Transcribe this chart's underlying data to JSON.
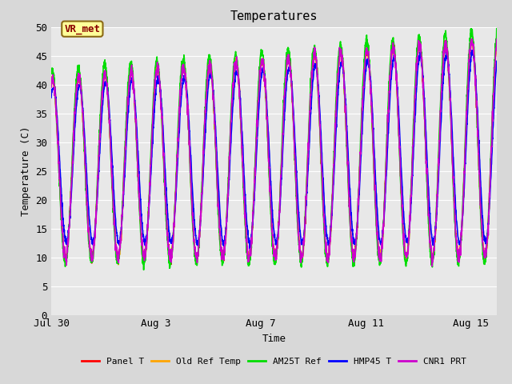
{
  "title": "Temperatures",
  "xlabel": "Time",
  "ylabel": "Temperature (C)",
  "ylim": [
    0,
    50
  ],
  "yticks": [
    0,
    5,
    10,
    15,
    20,
    25,
    30,
    35,
    40,
    45,
    50
  ],
  "x_tick_labels": [
    "Jul 30",
    "Aug 3",
    "Aug 7",
    "Aug 11",
    "Aug 15"
  ],
  "x_tick_positions": [
    0,
    4,
    8,
    12,
    16
  ],
  "annotation_text": "VR_met",
  "bg_color": "#d8d8d8",
  "plot_bg_color": "#e8e8e8",
  "series": [
    {
      "label": "Panel T",
      "color": "#ff0000",
      "lw": 1.2
    },
    {
      "label": "Old Ref Temp",
      "color": "#ffa500",
      "lw": 1.2
    },
    {
      "label": "AM25T Ref",
      "color": "#00dd00",
      "lw": 1.2
    },
    {
      "label": "HMP45 T",
      "color": "#0000ff",
      "lw": 1.2
    },
    {
      "label": "CNR1 PRT",
      "color": "#cc00cc",
      "lw": 1.2
    }
  ],
  "n_days": 17,
  "points_per_day": 144
}
